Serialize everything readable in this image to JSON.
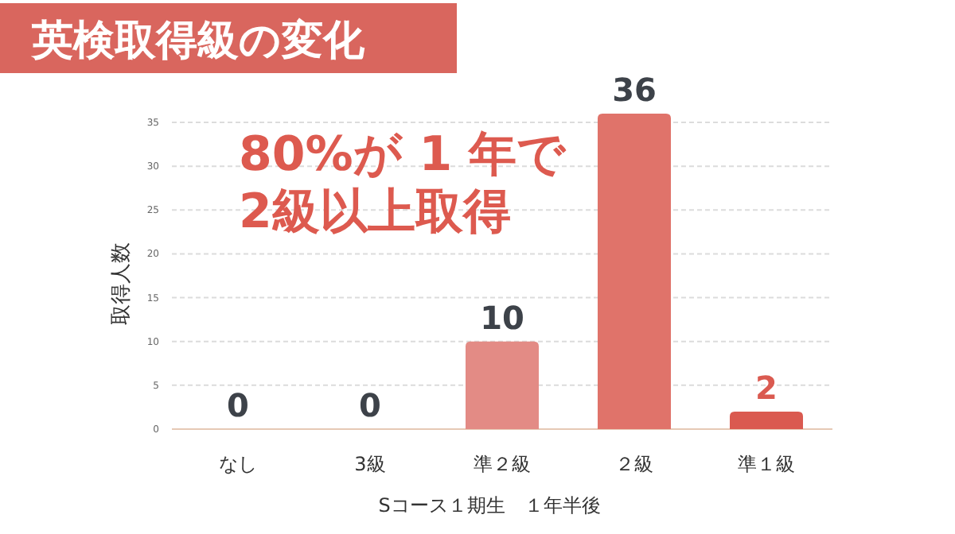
{
  "chart_data": {
    "type": "bar",
    "title": "英検取得級の変化",
    "xlabel": "Sコース１期生　１年半後",
    "ylabel": "取得人数",
    "categories": [
      "なし",
      "3級",
      "準２級",
      "２級",
      "準１級"
    ],
    "values": [
      0,
      0,
      10,
      36,
      2
    ],
    "colors": [
      "#e0736a",
      "#e0736a",
      "#e38b85",
      "#e0736a",
      "#da5a50"
    ],
    "ylim": [
      0,
      36
    ],
    "yticks": [
      0,
      5,
      10,
      15,
      20,
      25,
      30,
      35
    ],
    "grid": "y",
    "data_labels": true,
    "annotations": [
      "80%が 1 年で",
      "2級以上取得"
    ]
  }
}
